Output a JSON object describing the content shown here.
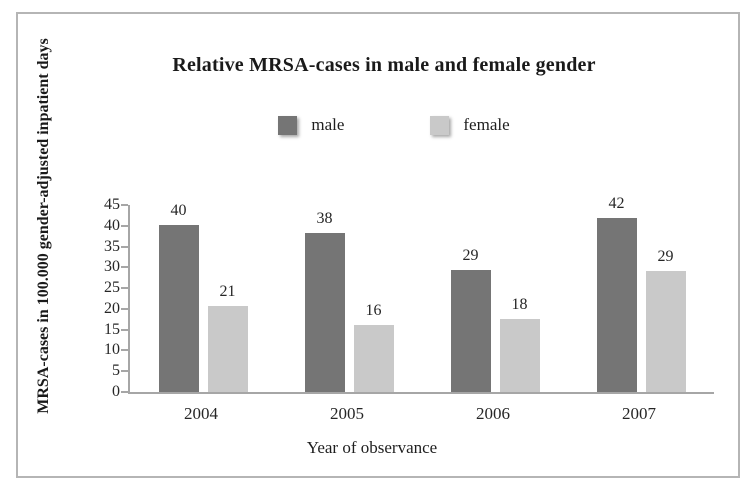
{
  "chart_data": {
    "type": "bar",
    "title": "Relative MRSA-cases in male and female gender",
    "xlabel": "Year of observance",
    "ylabel": "MRSA-cases in 100.000 gender-adjusted inpatient days",
    "categories": [
      "2004",
      "2005",
      "2006",
      "2007"
    ],
    "series": [
      {
        "name": "male",
        "color": "#757575",
        "values": [
          40,
          38,
          29,
          42
        ],
        "plotted_values": [
          40.3,
          38.2,
          29.4,
          41.8
        ]
      },
      {
        "name": "female",
        "color": "#c9c9c9",
        "values": [
          21,
          16,
          18,
          29
        ],
        "plotted_values": [
          20.6,
          16.2,
          17.5,
          29.2
        ]
      }
    ],
    "ylim": [
      0,
      45
    ],
    "ytick_step": 5,
    "grid": false,
    "legend_position": "top-center",
    "axis_color": "#a6a6a6",
    "frame_border_color": "#b5b5b5",
    "text_color": "#1f1f1f"
  }
}
